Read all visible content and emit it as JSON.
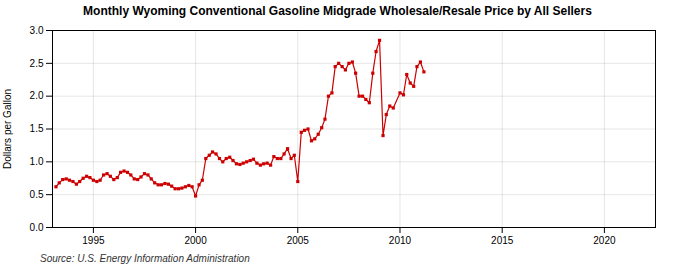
{
  "chart_data": {
    "type": "line",
    "title": "Monthly Wyoming Conventional Gasoline Midgrade Wholesale/Resale Price by All Sellers",
    "ylabel": "Dollars per Gallon",
    "caption": "Source: U.S. Energy Information Administration",
    "color": "#cc0000",
    "marker": "square",
    "line_style": "solid",
    "grid": true,
    "xlim": [
      1993.0,
      2022.5
    ],
    "ylim": [
      0.0,
      3.0
    ],
    "xticks": [
      1995,
      2000,
      2005,
      2010,
      2015,
      2020
    ],
    "yticks": [
      {
        "value": 0.0,
        "label": "0.0"
      },
      0.5,
      {
        "value": 1.0,
        "label": "1.0"
      },
      1.5,
      {
        "value": 2.0,
        "label": "2.0"
      },
      2.5,
      {
        "value": 3.0,
        "label": "3.0"
      }
    ],
    "x": [
      1993.17,
      1993.33,
      1993.5,
      1993.67,
      1993.83,
      1994.0,
      1994.17,
      1994.33,
      1994.5,
      1994.67,
      1994.83,
      1995.0,
      1995.17,
      1995.33,
      1995.5,
      1995.67,
      1995.83,
      1996.0,
      1996.17,
      1996.33,
      1996.5,
      1996.67,
      1996.83,
      1997.0,
      1997.17,
      1997.33,
      1997.5,
      1997.67,
      1997.83,
      1998.0,
      1998.17,
      1998.33,
      1998.5,
      1998.67,
      1998.83,
      1999.0,
      1999.17,
      1999.33,
      1999.5,
      1999.67,
      1999.83,
      2000.0,
      2000.17,
      2000.33,
      2000.5,
      2000.67,
      2000.83,
      2001.0,
      2001.17,
      2001.33,
      2001.5,
      2001.67,
      2001.83,
      2002.0,
      2002.17,
      2002.33,
      2002.5,
      2002.67,
      2002.83,
      2003.0,
      2003.17,
      2003.33,
      2003.5,
      2003.67,
      2003.83,
      2004.0,
      2004.17,
      2004.33,
      2004.5,
      2004.67,
      2004.83,
      2005.0,
      2005.17,
      2005.33,
      2005.5,
      2005.67,
      2005.83,
      2006.0,
      2006.17,
      2006.33,
      2006.5,
      2006.67,
      2006.83,
      2007.0,
      2007.17,
      2007.33,
      2007.5,
      2007.67,
      2007.83,
      2008.0,
      2008.17,
      2008.33,
      2008.5,
      2008.67,
      2008.83,
      2009.0,
      2009.17,
      2009.33,
      2009.5,
      2009.67,
      2010.0,
      2010.17,
      2010.33,
      2010.5,
      2010.67,
      2010.83,
      2011.0,
      2011.17
    ],
    "values": [
      0.62,
      0.68,
      0.73,
      0.74,
      0.72,
      0.7,
      0.66,
      0.7,
      0.75,
      0.78,
      0.76,
      0.72,
      0.7,
      0.72,
      0.8,
      0.82,
      0.78,
      0.73,
      0.76,
      0.84,
      0.86,
      0.84,
      0.8,
      0.74,
      0.73,
      0.77,
      0.82,
      0.8,
      0.74,
      0.68,
      0.65,
      0.65,
      0.67,
      0.66,
      0.63,
      0.59,
      0.59,
      0.6,
      0.62,
      0.64,
      0.62,
      0.48,
      0.65,
      0.72,
      1.05,
      1.1,
      1.15,
      1.12,
      1.05,
      1.0,
      1.05,
      1.07,
      1.02,
      0.97,
      0.96,
      0.98,
      1.0,
      1.02,
      1.04,
      0.98,
      0.95,
      0.97,
      0.98,
      0.95,
      1.08,
      1.05,
      1.05,
      1.12,
      1.2,
      1.05,
      1.1,
      0.7,
      1.45,
      1.48,
      1.5,
      1.32,
      1.35,
      1.42,
      1.52,
      1.65,
      2.0,
      2.05,
      2.45,
      2.5,
      2.45,
      2.4,
      2.5,
      2.52,
      2.35,
      2.0,
      2.0,
      1.95,
      1.9,
      2.35,
      2.68,
      2.85,
      1.4,
      1.72,
      1.85,
      1.82,
      2.05,
      2.02,
      2.33,
      2.2,
      2.15,
      2.45,
      2.52,
      2.37
    ]
  }
}
